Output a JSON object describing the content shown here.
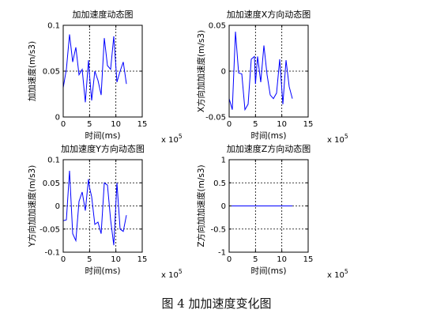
{
  "caption": "图 4  加加速度变化图",
  "chart_data": [
    {
      "type": "line",
      "title": "加加速度动态图",
      "xlabel": "时间(ms)",
      "ylabel": "加加速度(m/s3)",
      "x_multiplier": "x 10^5",
      "xlim": [
        0,
        15
      ],
      "ylim": [
        0,
        0.1
      ],
      "xticks": [
        "0",
        "5",
        "10",
        "15"
      ],
      "yticks": [
        "0",
        "0.05",
        "0.1"
      ],
      "grid": true,
      "color": "#0000ff",
      "x": [
        0,
        0.6,
        1.2,
        1.8,
        2.4,
        3.0,
        3.6,
        4.2,
        4.8,
        5.0,
        5.4,
        6.0,
        6.6,
        7.2,
        7.8,
        8.4,
        9.0,
        9.6,
        10.2,
        10.8,
        11.4,
        12.0
      ],
      "values": [
        0.032,
        0.052,
        0.09,
        0.06,
        0.076,
        0.046,
        0.052,
        0.016,
        0.062,
        0.046,
        0.018,
        0.05,
        0.04,
        0.024,
        0.086,
        0.056,
        0.052,
        0.088,
        0.038,
        0.05,
        0.06,
        0.036
      ]
    },
    {
      "type": "line",
      "title": "加加速度X方向动态图",
      "xlabel": "时间(ms)",
      "ylabel": "X方向加加速度(m/s3)",
      "x_multiplier": "x 10^5",
      "xlim": [
        0,
        15
      ],
      "ylim": [
        -0.05,
        0.05
      ],
      "xticks": [
        "0",
        "5",
        "10",
        "15"
      ],
      "yticks": [
        "-0.05",
        "0",
        "0.05"
      ],
      "grid": true,
      "color": "#0000ff",
      "x": [
        0,
        0.6,
        1.2,
        1.8,
        2.4,
        3.0,
        3.6,
        4.2,
        4.8,
        5.0,
        5.4,
        6.0,
        6.6,
        7.2,
        7.8,
        8.4,
        9.0,
        9.6,
        10.2,
        10.8,
        11.4,
        12.0
      ],
      "values": [
        -0.03,
        -0.042,
        0.043,
        -0.002,
        -0.003,
        -0.042,
        -0.036,
        0.013,
        0.016,
        -0.014,
        0.016,
        -0.012,
        0.028,
        -0.004,
        -0.026,
        -0.03,
        -0.024,
        0.013,
        -0.036,
        0.012,
        -0.017,
        -0.03
      ]
    },
    {
      "type": "line",
      "title": "加加速度Y方向动态图",
      "xlabel": "时间(ms)",
      "ylabel": "Y方向加加速度(m/s3)",
      "x_multiplier": "x 10^5",
      "xlim": [
        0,
        15
      ],
      "ylim": [
        -0.1,
        0.1
      ],
      "xticks": [
        "0",
        "5",
        "10",
        "15"
      ],
      "yticks": [
        "-0.1",
        "-0.05",
        "0",
        "0.05",
        "0.1"
      ],
      "grid": true,
      "color": "#0000ff",
      "x": [
        0,
        0.6,
        1.2,
        1.8,
        2.4,
        3.0,
        3.6,
        4.2,
        4.8,
        5.0,
        5.4,
        6.0,
        6.6,
        7.2,
        7.8,
        8.4,
        9.0,
        9.6,
        10.2,
        10.8,
        11.4,
        12.0
      ],
      "values": [
        -0.032,
        -0.03,
        0.076,
        -0.06,
        -0.075,
        0.01,
        0.03,
        -0.01,
        0.058,
        0.04,
        0.02,
        -0.04,
        -0.035,
        -0.06,
        0.05,
        0.045,
        -0.03,
        -0.085,
        0.05,
        -0.05,
        -0.055,
        -0.02
      ]
    },
    {
      "type": "line",
      "title": "加加速度Z方向动态图",
      "xlabel": "时间(ms)",
      "ylabel": "Z方向加加速度(m/s3)",
      "x_multiplier": "x 10^5",
      "xlim": [
        0,
        15
      ],
      "ylim": [
        -1,
        1
      ],
      "xticks": [
        "0",
        "5",
        "10",
        "15"
      ],
      "yticks": [
        "-1",
        "-0.5",
        "0",
        "0.5",
        "1"
      ],
      "grid": true,
      "color": "#0000ff",
      "x": [
        0,
        12.0
      ],
      "values": [
        0,
        0
      ]
    }
  ]
}
